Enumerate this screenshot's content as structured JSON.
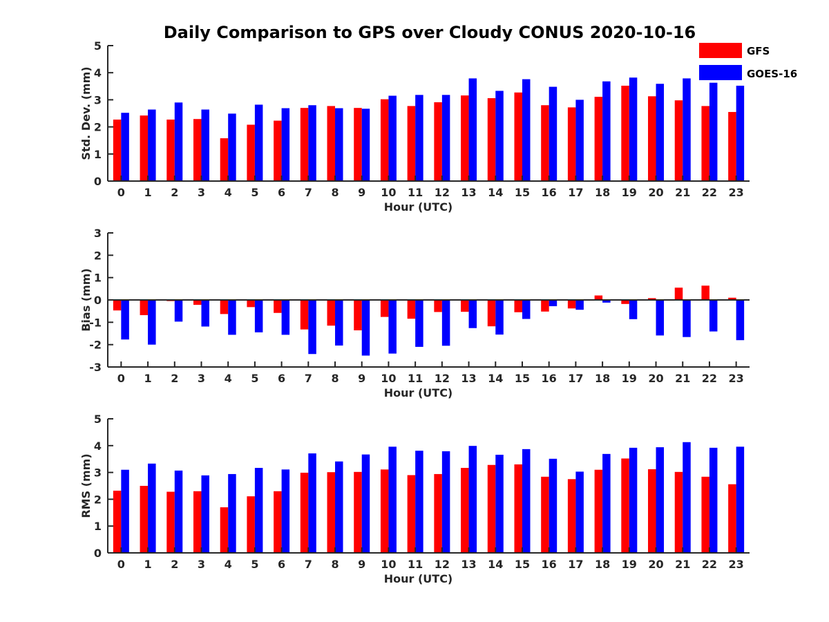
{
  "title": "Daily Comparison to GPS over Cloudy CONUS 2020-10-16",
  "legend": [
    {
      "name": "GFS",
      "color": "#ff0000"
    },
    {
      "name": "GOES-16",
      "color": "#0000ff"
    }
  ],
  "chart_data": [
    {
      "type": "bar",
      "xlabel": "Hour (UTC)",
      "ylabel": "Std. Dev. (mm)",
      "ylim": [
        0,
        5
      ],
      "yticks": [
        "0",
        "1",
        "2",
        "3",
        "4",
        "5"
      ],
      "categories": [
        "0",
        "1",
        "2",
        "3",
        "4",
        "5",
        "6",
        "7",
        "8",
        "9",
        "10",
        "11",
        "12",
        "13",
        "14",
        "15",
        "16",
        "17",
        "18",
        "19",
        "20",
        "21",
        "22",
        "23"
      ],
      "series": [
        {
          "name": "GFS",
          "color": "#ff0000",
          "values": [
            2.27,
            2.42,
            2.27,
            2.29,
            1.58,
            2.08,
            2.23,
            2.7,
            2.77,
            2.7,
            3.02,
            2.77,
            2.91,
            3.16,
            3.06,
            3.27,
            2.8,
            2.72,
            3.11,
            3.52,
            3.13,
            2.98,
            2.77,
            2.55
          ]
        },
        {
          "name": "GOES-16",
          "color": "#0000ff",
          "values": [
            2.52,
            2.64,
            2.9,
            2.64,
            2.49,
            2.82,
            2.69,
            2.8,
            2.69,
            2.67,
            3.15,
            3.18,
            3.18,
            3.79,
            3.33,
            3.76,
            3.48,
            3.0,
            3.68,
            3.82,
            3.59,
            3.79,
            3.63,
            3.52
          ]
        }
      ]
    },
    {
      "type": "bar",
      "xlabel": "Hour (UTC)",
      "ylabel": "Bias (mm)",
      "ylim": [
        -3,
        3
      ],
      "yticks": [
        "-3",
        "-2",
        "-1",
        "0",
        "1",
        "2",
        "3"
      ],
      "categories": [
        "0",
        "1",
        "2",
        "3",
        "4",
        "5",
        "6",
        "7",
        "8",
        "9",
        "10",
        "11",
        "12",
        "13",
        "14",
        "15",
        "16",
        "17",
        "18",
        "19",
        "20",
        "21",
        "22",
        "23"
      ],
      "series": [
        {
          "name": "GFS",
          "color": "#ff0000",
          "values": [
            -0.47,
            -0.68,
            -0.05,
            -0.22,
            -0.63,
            -0.32,
            -0.58,
            -1.32,
            -1.15,
            -1.36,
            -0.76,
            -0.84,
            -0.54,
            -0.53,
            -1.18,
            -0.55,
            -0.52,
            -0.38,
            0.2,
            -0.18,
            0.08,
            0.55,
            0.64,
            0.1
          ]
        },
        {
          "name": "GOES-16",
          "color": "#0000ff",
          "values": [
            -1.77,
            -2.0,
            -0.97,
            -1.19,
            -1.56,
            -1.45,
            -1.56,
            -2.42,
            -2.04,
            -2.49,
            -2.4,
            -2.1,
            -2.05,
            -1.26,
            -1.55,
            -0.85,
            -0.28,
            -0.44,
            -0.12,
            -0.86,
            -1.59,
            -1.66,
            -1.41,
            -1.8
          ]
        }
      ]
    },
    {
      "type": "bar",
      "xlabel": "Hour (UTC)",
      "ylabel": "RMS (mm)",
      "ylim": [
        0,
        5
      ],
      "yticks": [
        "0",
        "1",
        "2",
        "3",
        "4",
        "5"
      ],
      "categories": [
        "0",
        "1",
        "2",
        "3",
        "4",
        "5",
        "6",
        "7",
        "8",
        "9",
        "10",
        "11",
        "12",
        "13",
        "14",
        "15",
        "16",
        "17",
        "18",
        "19",
        "20",
        "21",
        "22",
        "23"
      ],
      "series": [
        {
          "name": "GFS",
          "color": "#ff0000",
          "values": [
            2.32,
            2.5,
            2.28,
            2.3,
            1.7,
            2.11,
            2.3,
            2.99,
            3.01,
            3.02,
            3.11,
            2.9,
            2.94,
            3.17,
            3.28,
            3.3,
            2.84,
            2.75,
            3.1,
            3.52,
            3.12,
            3.02,
            2.84,
            2.56
          ]
        },
        {
          "name": "GOES-16",
          "color": "#0000ff",
          "values": [
            3.1,
            3.33,
            3.07,
            2.89,
            2.94,
            3.17,
            3.11,
            3.71,
            3.41,
            3.67,
            3.96,
            3.81,
            3.79,
            3.99,
            3.66,
            3.87,
            3.51,
            3.03,
            3.69,
            3.92,
            3.94,
            4.13,
            3.92,
            3.96
          ]
        }
      ]
    }
  ]
}
